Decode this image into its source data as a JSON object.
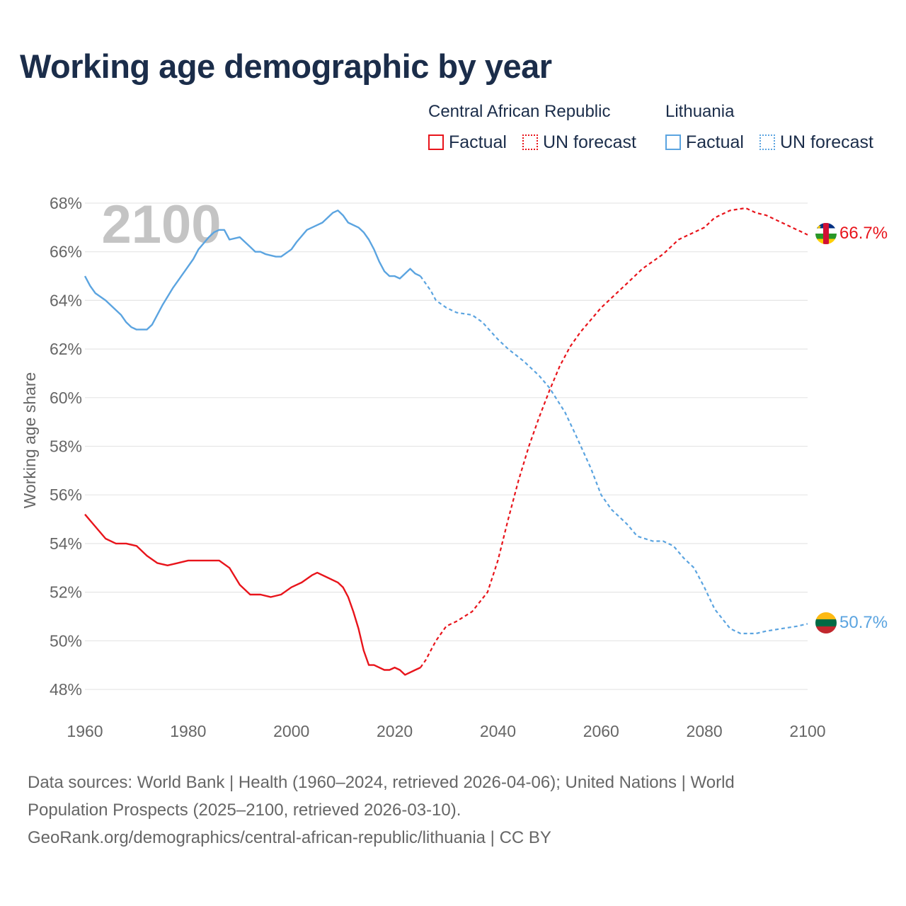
{
  "title": "Working age demographic by year",
  "legend": {
    "groups": [
      {
        "country": "Central African Republic",
        "factual_label": "Factual",
        "forecast_label": "UN forecast",
        "color": "#e8141b"
      },
      {
        "country": "Lithuania",
        "factual_label": "Factual",
        "forecast_label": "UN forecast",
        "color": "#5ba4e0"
      }
    ]
  },
  "footer": {
    "line1": "Data sources: World Bank | Health (1960–2024, retrieved 2026-04-06); United Nations | World",
    "line2": "Population Prospects (2025–2100, retrieved 2026-03-10).",
    "line3": "GeoRank.org/demographics/central-african-republic/lithuania | CC BY"
  },
  "chart_data": {
    "type": "line",
    "title": "Working age demographic by year",
    "ylabel": "Working age share",
    "xlabel": "",
    "year_watermark": "2100",
    "xlim": [
      1960,
      2100
    ],
    "ylim": [
      47,
      69
    ],
    "x_ticks": [
      1960,
      1980,
      2000,
      2020,
      2040,
      2060,
      2080,
      2100
    ],
    "x_tick_labels": [
      "1960",
      "1980",
      "2000",
      "2020",
      "2040",
      "2060",
      "2080",
      "2100"
    ],
    "y_ticks": [
      48,
      50,
      52,
      54,
      56,
      58,
      60,
      62,
      64,
      66,
      68
    ],
    "y_tick_labels": [
      "48%",
      "50%",
      "52%",
      "54%",
      "56%",
      "58%",
      "60%",
      "62%",
      "64%",
      "66%",
      "68%"
    ],
    "grid": "horizontal",
    "series": [
      {
        "name": "Central African Republic",
        "color": "#e8141b",
        "end_label": "66.7%",
        "flag": "central-african-republic-flag",
        "factual": [
          [
            1960,
            55.2
          ],
          [
            1962,
            54.7
          ],
          [
            1964,
            54.2
          ],
          [
            1966,
            54.0
          ],
          [
            1968,
            54.0
          ],
          [
            1970,
            53.9
          ],
          [
            1972,
            53.5
          ],
          [
            1974,
            53.2
          ],
          [
            1976,
            53.1
          ],
          [
            1978,
            53.2
          ],
          [
            1980,
            53.3
          ],
          [
            1982,
            53.3
          ],
          [
            1984,
            53.3
          ],
          [
            1986,
            53.3
          ],
          [
            1988,
            53.0
          ],
          [
            1990,
            52.3
          ],
          [
            1992,
            51.9
          ],
          [
            1994,
            51.9
          ],
          [
            1996,
            51.8
          ],
          [
            1998,
            51.9
          ],
          [
            2000,
            52.2
          ],
          [
            2002,
            52.4
          ],
          [
            2004,
            52.7
          ],
          [
            2005,
            52.8
          ],
          [
            2007,
            52.6
          ],
          [
            2009,
            52.4
          ],
          [
            2010,
            52.2
          ],
          [
            2011,
            51.8
          ],
          [
            2012,
            51.2
          ],
          [
            2013,
            50.5
          ],
          [
            2014,
            49.6
          ],
          [
            2015,
            49.0
          ],
          [
            2016,
            49.0
          ],
          [
            2018,
            48.8
          ],
          [
            2019,
            48.8
          ],
          [
            2020,
            48.9
          ],
          [
            2021,
            48.8
          ],
          [
            2022,
            48.6
          ],
          [
            2024,
            48.8
          ],
          [
            2025,
            48.9
          ]
        ],
        "forecast": [
          [
            2025,
            48.9
          ],
          [
            2026,
            49.2
          ],
          [
            2027,
            49.6
          ],
          [
            2028,
            50.0
          ],
          [
            2030,
            50.6
          ],
          [
            2032,
            50.8
          ],
          [
            2035,
            51.2
          ],
          [
            2038,
            52.0
          ],
          [
            2040,
            53.3
          ],
          [
            2042,
            55.0
          ],
          [
            2044,
            56.6
          ],
          [
            2046,
            58.0
          ],
          [
            2048,
            59.2
          ],
          [
            2050,
            60.3
          ],
          [
            2052,
            61.3
          ],
          [
            2054,
            62.1
          ],
          [
            2056,
            62.7
          ],
          [
            2058,
            63.2
          ],
          [
            2060,
            63.7
          ],
          [
            2062,
            64.1
          ],
          [
            2065,
            64.7
          ],
          [
            2068,
            65.3
          ],
          [
            2070,
            65.6
          ],
          [
            2072,
            65.9
          ],
          [
            2075,
            66.5
          ],
          [
            2078,
            66.8
          ],
          [
            2080,
            67.0
          ],
          [
            2082,
            67.4
          ],
          [
            2085,
            67.7
          ],
          [
            2088,
            67.8
          ],
          [
            2090,
            67.6
          ],
          [
            2092,
            67.5
          ],
          [
            2095,
            67.2
          ],
          [
            2098,
            66.9
          ],
          [
            2100,
            66.7
          ]
        ]
      },
      {
        "name": "Lithuania",
        "color": "#5ba4e0",
        "end_label": "50.7%",
        "flag": "lithuania-flag",
        "factual": [
          [
            1960,
            65.0
          ],
          [
            1961,
            64.6
          ],
          [
            1962,
            64.3
          ],
          [
            1964,
            64.0
          ],
          [
            1966,
            63.6
          ],
          [
            1967,
            63.4
          ],
          [
            1968,
            63.1
          ],
          [
            1969,
            62.9
          ],
          [
            1970,
            62.8
          ],
          [
            1972,
            62.8
          ],
          [
            1973,
            63.0
          ],
          [
            1975,
            63.8
          ],
          [
            1977,
            64.5
          ],
          [
            1979,
            65.1
          ],
          [
            1981,
            65.7
          ],
          [
            1982,
            66.1
          ],
          [
            1984,
            66.6
          ],
          [
            1985,
            66.8
          ],
          [
            1986,
            66.9
          ],
          [
            1987,
            66.9
          ],
          [
            1988,
            66.5
          ],
          [
            1990,
            66.6
          ],
          [
            1992,
            66.2
          ],
          [
            1993,
            66.0
          ],
          [
            1994,
            66.0
          ],
          [
            1995,
            65.9
          ],
          [
            1997,
            65.8
          ],
          [
            1998,
            65.8
          ],
          [
            2000,
            66.1
          ],
          [
            2001,
            66.4
          ],
          [
            2003,
            66.9
          ],
          [
            2005,
            67.1
          ],
          [
            2006,
            67.2
          ],
          [
            2008,
            67.6
          ],
          [
            2009,
            67.7
          ],
          [
            2010,
            67.5
          ],
          [
            2011,
            67.2
          ],
          [
            2013,
            67.0
          ],
          [
            2014,
            66.8
          ],
          [
            2015,
            66.5
          ],
          [
            2016,
            66.1
          ],
          [
            2017,
            65.6
          ],
          [
            2018,
            65.2
          ],
          [
            2019,
            65.0
          ],
          [
            2020,
            65.0
          ],
          [
            2021,
            64.9
          ],
          [
            2022,
            65.1
          ],
          [
            2023,
            65.3
          ],
          [
            2024,
            65.1
          ],
          [
            2025,
            65.0
          ]
        ],
        "forecast": [
          [
            2025,
            65.0
          ],
          [
            2027,
            64.4
          ],
          [
            2028,
            64.0
          ],
          [
            2030,
            63.7
          ],
          [
            2032,
            63.5
          ],
          [
            2035,
            63.4
          ],
          [
            2037,
            63.1
          ],
          [
            2040,
            62.4
          ],
          [
            2042,
            62.0
          ],
          [
            2045,
            61.5
          ],
          [
            2048,
            60.9
          ],
          [
            2050,
            60.4
          ],
          [
            2053,
            59.4
          ],
          [
            2055,
            58.5
          ],
          [
            2058,
            57.1
          ],
          [
            2060,
            56.0
          ],
          [
            2062,
            55.4
          ],
          [
            2065,
            54.8
          ],
          [
            2067,
            54.3
          ],
          [
            2070,
            54.1
          ],
          [
            2072,
            54.1
          ],
          [
            2074,
            53.9
          ],
          [
            2076,
            53.4
          ],
          [
            2078,
            53.0
          ],
          [
            2080,
            52.2
          ],
          [
            2082,
            51.3
          ],
          [
            2085,
            50.5
          ],
          [
            2087,
            50.3
          ],
          [
            2090,
            50.3
          ],
          [
            2092,
            50.4
          ],
          [
            2095,
            50.5
          ],
          [
            2098,
            50.6
          ],
          [
            2100,
            50.7
          ]
        ]
      }
    ]
  }
}
